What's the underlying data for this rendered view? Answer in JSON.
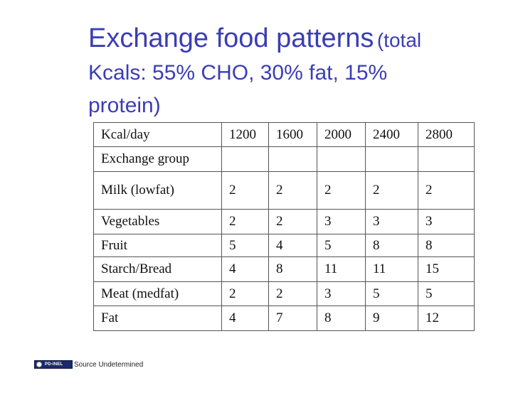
{
  "title": {
    "main": "Exchange food patterns",
    "paren": "(total",
    "line2": "Kcals: 55% CHO, 30% fat, 15%",
    "line3": "protein)"
  },
  "table": {
    "rows": [
      [
        "Kcal/day",
        "1200",
        "1600",
        "2000",
        "2400",
        "2800"
      ],
      [
        "Exchange group",
        "",
        "",
        "",
        "",
        ""
      ],
      [
        "Milk (lowfat)",
        "2",
        "2",
        "2",
        "2",
        "2"
      ],
      [
        "Vegetables",
        "2",
        "2",
        "3",
        "3",
        "3"
      ],
      [
        "Fruit",
        "5",
        "4",
        "5",
        "8",
        "8"
      ],
      [
        "Starch/Bread",
        "4",
        "8",
        "11",
        "11",
        "15"
      ],
      [
        "Meat (medfat)",
        "2",
        "2",
        "3",
        "5",
        "5"
      ],
      [
        "Fat",
        "4",
        "7",
        "8",
        "9",
        "12"
      ]
    ]
  },
  "footer": {
    "badge_text": "PD-INEL",
    "badge_icon": "public-domain-icon",
    "source": "Source Undetermined"
  },
  "colors": {
    "title": "#3b3db4",
    "badge": "#1a2a6e"
  }
}
